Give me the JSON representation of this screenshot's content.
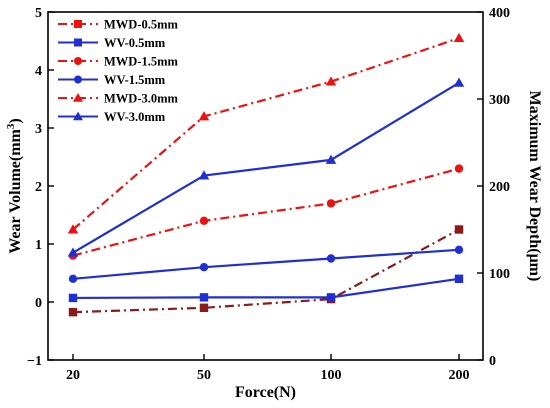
{
  "chart_data": {
    "type": "line",
    "x": [
      "20",
      "50",
      "100",
      "200"
    ],
    "xlabel": "Force(N)",
    "ylabel_left": "Wear Volume(mm",
    "ylabel_left_sup": "3",
    "ylabel_left_close": ")",
    "ylabel_right": "Maximum Wear Depth(μm)",
    "ylim_left": [
      -1,
      5
    ],
    "yticks_left": [
      "−1",
      "0",
      "1",
      "2",
      "3",
      "4",
      "5"
    ],
    "ylim_right": [
      0,
      400
    ],
    "yticks_right": [
      "0",
      "100",
      "200",
      "300",
      "400"
    ],
    "legend_position": "top-left",
    "grid": false,
    "series": [
      {
        "name": "MWD-0.5mm",
        "axis": "right",
        "values": [
          55,
          60,
          70,
          150
        ],
        "color": "#8B1A1A",
        "style": "dashdot",
        "marker": "square",
        "legend": true
      },
      {
        "name": "WV-0.5mm",
        "axis": "left",
        "values": [
          0.07,
          0.08,
          0.08,
          0.4
        ],
        "color": "#1f2fd0",
        "style": "solid",
        "marker": "square",
        "legend": true
      },
      {
        "name": "MWD-1.5mm",
        "axis": "right",
        "values": [
          120,
          160,
          180,
          220
        ],
        "color": "#ee1111",
        "style": "dashdot",
        "marker": "circle",
        "legend": true
      },
      {
        "name": "WV-1.5mm",
        "axis": "left",
        "values": [
          0.4,
          0.6,
          0.75,
          0.9
        ],
        "color": "#1f2fd0",
        "style": "solid",
        "marker": "circle",
        "legend": true
      },
      {
        "name": "MWD-3.0mm",
        "axis": "right",
        "values": [
          150,
          280,
          320,
          370
        ],
        "color": "#ee1111",
        "style": "dashdot",
        "marker": "triangle",
        "legend": true
      },
      {
        "name": "WV-3.0mm",
        "axis": "left",
        "values": [
          0.85,
          2.18,
          2.45,
          3.78
        ],
        "color": "#1f2fd0",
        "style": "solid",
        "marker": "triangle",
        "legend": true
      }
    ],
    "legend_colors": {
      "MWD-0.5mm": "#ee1111"
    }
  }
}
